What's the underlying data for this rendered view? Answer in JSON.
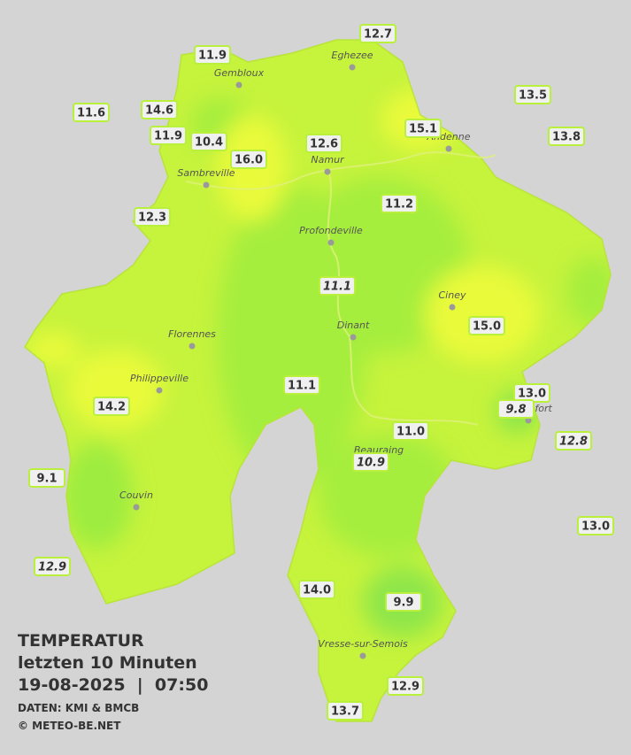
{
  "header": {
    "title": "TEMPERATUR",
    "subtitle": "letzten 10 Minuten",
    "timestamp": "19-08-2025  |  07:50",
    "source": "DATEN: KMI & BMCB",
    "credit": "© METEO-BE.NET"
  },
  "cities": [
    "Eghezee",
    "Gembloux",
    "Andenne",
    "Namur",
    "Sambreville",
    "Profondeville",
    "Ciney",
    "Florennes",
    "Dinant",
    "Philippeville",
    "Rochefort",
    "Beauraing",
    "Couvin",
    "Vresse-sur-Semois"
  ],
  "stations": [
    "12.7",
    "11.9",
    "11.6",
    "14.6",
    "13.5",
    "11.9",
    "10.4",
    "15.1",
    "12.6",
    "13.8",
    "16.0",
    "12.3",
    "11.2",
    "11.1",
    "15.0",
    "11.1",
    "13.0",
    "14.2",
    "9.8",
    "11.0",
    "12.8",
    "10.9",
    "9.1",
    "13.0",
    "12.9",
    "14.0",
    "9.9",
    "12.9",
    "13.7"
  ]
}
